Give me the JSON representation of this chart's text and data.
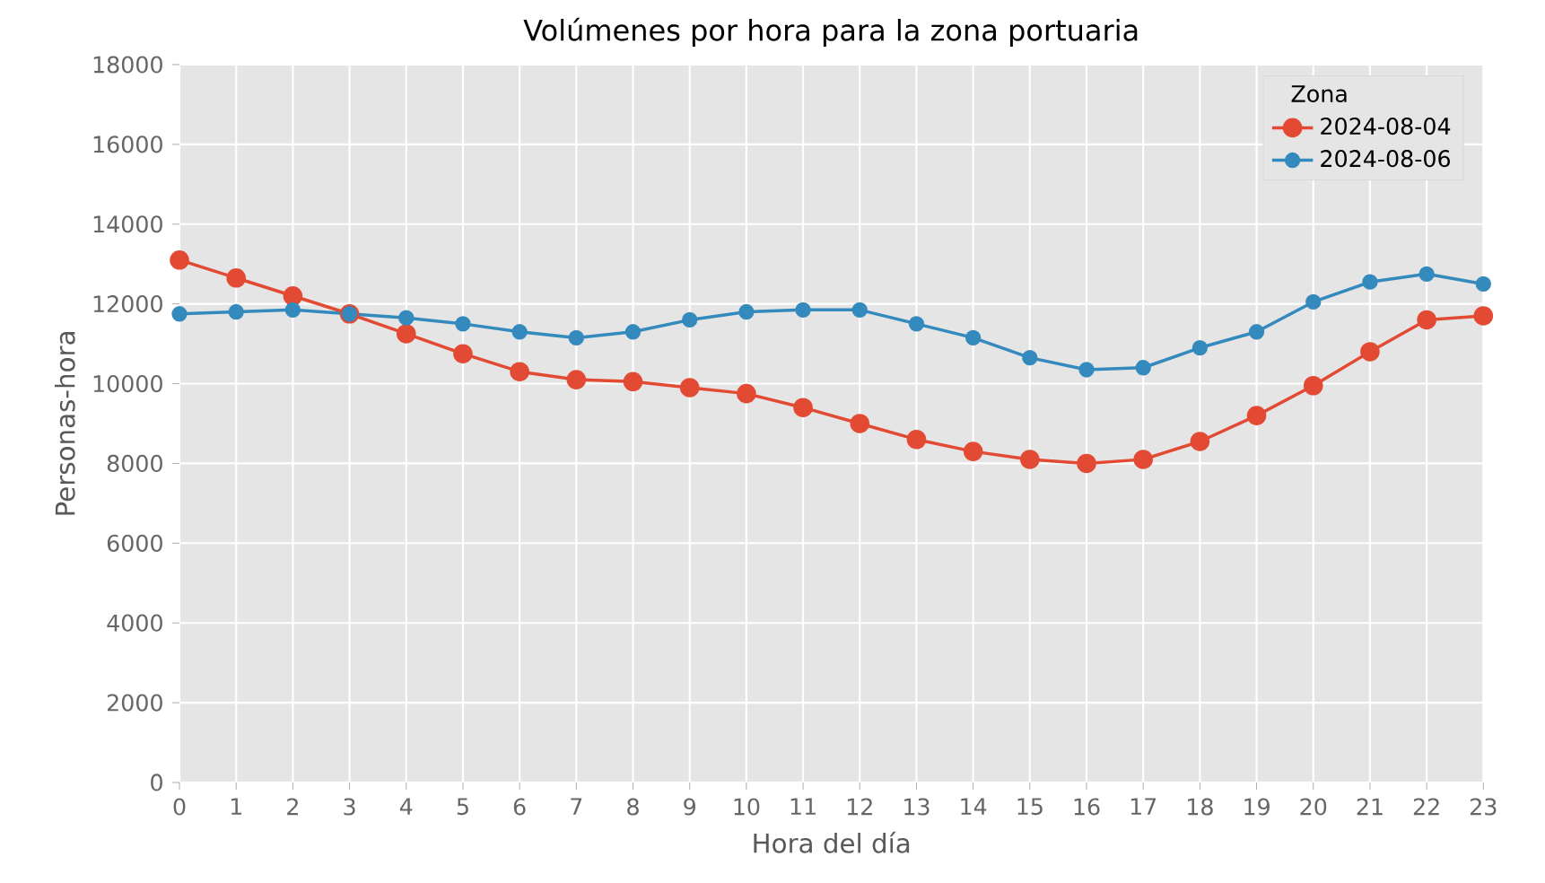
{
  "chart_data": {
    "type": "line",
    "title": "Volúmenes por hora para la zona portuaria",
    "xlabel": "Hora del día",
    "ylabel": "Personas-hora",
    "legend_title": "Zona",
    "x": [
      0,
      1,
      2,
      3,
      4,
      5,
      6,
      7,
      8,
      9,
      10,
      11,
      12,
      13,
      14,
      15,
      16,
      17,
      18,
      19,
      20,
      21,
      22,
      23
    ],
    "series": [
      {
        "name": "2024-08-04",
        "color": "#e24a33",
        "values": [
          13100,
          12650,
          12200,
          11750,
          11250,
          10750,
          10300,
          10100,
          10050,
          9900,
          9750,
          9400,
          9000,
          8600,
          8300,
          8100,
          8000,
          8100,
          8550,
          9200,
          9950,
          10800,
          11600,
          11700
        ]
      },
      {
        "name": "2024-08-06",
        "color": "#348abd",
        "values": [
          11750,
          11800,
          11850,
          11750,
          11650,
          11500,
          11300,
          11150,
          11300,
          11600,
          11800,
          11850,
          11850,
          11500,
          11150,
          10650,
          10350,
          10400,
          10900,
          11300,
          12050,
          12550,
          12750,
          12500
        ]
      }
    ],
    "xlim": [
      0,
      23
    ],
    "xticks": [
      0,
      1,
      2,
      3,
      4,
      5,
      6,
      7,
      8,
      9,
      10,
      11,
      12,
      13,
      14,
      15,
      16,
      17,
      18,
      19,
      20,
      21,
      22,
      23
    ],
    "ylim": [
      0,
      18000
    ],
    "yticks": [
      0,
      2000,
      4000,
      6000,
      8000,
      10000,
      12000,
      14000,
      16000,
      18000
    ],
    "grid": true,
    "legend": "top right",
    "marker": "circle",
    "line_style": "solid"
  }
}
